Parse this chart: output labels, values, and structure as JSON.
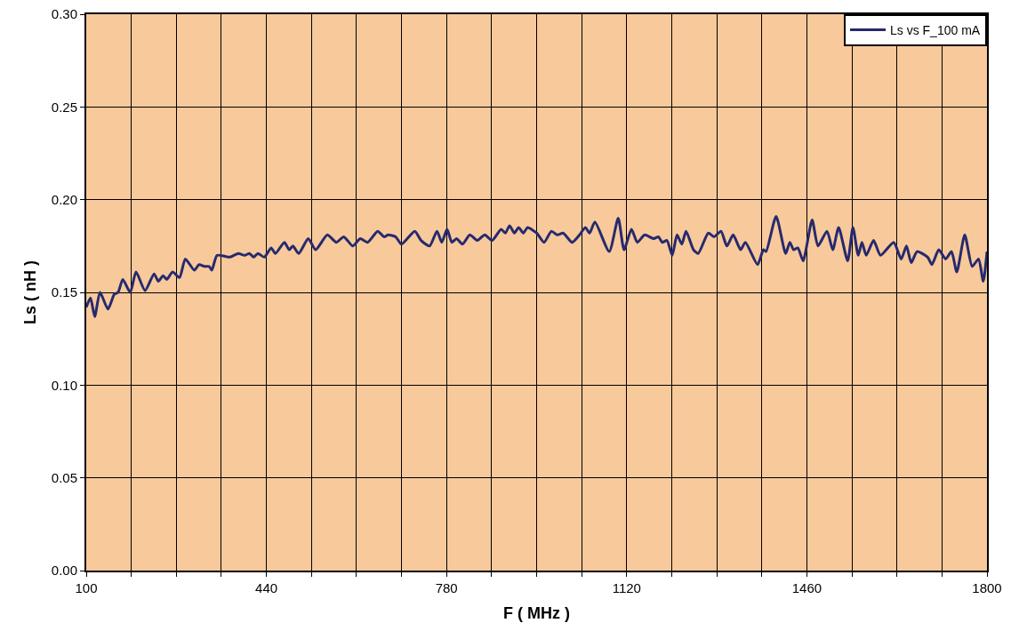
{
  "chart_data": {
    "type": "line",
    "xlabel": "F ( MHz )",
    "ylabel": "Ls ( nH )",
    "xlim": [
      100,
      1800
    ],
    "xticks": [
      100,
      {
        "value": 185,
        "label": null
      },
      {
        "value": 270,
        "label": null
      },
      {
        "value": 355,
        "label": null
      },
      440,
      {
        "value": 525,
        "label": null
      },
      {
        "value": 610,
        "label": null
      },
      {
        "value": 695,
        "label": null
      },
      780,
      {
        "value": 865,
        "label": null
      },
      {
        "value": 950,
        "label": null
      },
      {
        "value": 1035,
        "label": null
      },
      1120,
      {
        "value": 1205,
        "label": null
      },
      {
        "value": 1290,
        "label": null
      },
      {
        "value": 1375,
        "label": null
      },
      1460,
      {
        "value": 1545,
        "label": null
      },
      {
        "value": 1630,
        "label": null
      },
      {
        "value": 1715,
        "label": null
      },
      1800
    ],
    "ylim": [
      0,
      0.3
    ],
    "yticks": [
      {
        "value": 0,
        "label": "0.00"
      },
      {
        "value": 0.05,
        "label": "0.05"
      },
      {
        "value": 0.1,
        "label": "0.10"
      },
      {
        "value": 0.15,
        "label": "0.15"
      },
      {
        "value": 0.2,
        "label": "0.20"
      },
      {
        "value": 0.25,
        "label": "0.25"
      },
      {
        "value": 0.3,
        "label": "0.30"
      }
    ],
    "grid": true,
    "legend": "top right",
    "marker": "none",
    "line_style": "solid",
    "series": [
      {
        "name": "Ls vs F_100 mA",
        "color": "#262a6e",
        "x": [
          100,
          108,
          116,
          126,
          141,
          153,
          160,
          169,
          183,
          194,
          211,
          228,
          236,
          245,
          252,
          263,
          276,
          287,
          304,
          313,
          323,
          332,
          337,
          347,
          371,
          387,
          399,
          408,
          416,
          424,
          436,
          449,
          457,
          474,
          483,
          490,
          501,
          519,
          533,
          555,
          572,
          586,
          603,
          617,
          631,
          650,
          662,
          670,
          684,
          695,
          720,
          732,
          748,
          762,
          771,
          781,
          790,
          799,
          810,
          824,
          838,
          852,
          866,
          883,
          891,
          899,
          908,
          916,
          925,
          933,
          950,
          964,
          978,
          989,
          1000,
          1017,
          1031,
          1042,
          1050,
          1060,
          1087,
          1104,
          1115,
          1129,
          1140,
          1154,
          1171,
          1180,
          1187,
          1196,
          1206,
          1215,
          1224,
          1232,
          1246,
          1255,
          1274,
          1285,
          1298,
          1309,
          1321,
          1335,
          1344,
          1367,
          1378,
          1383,
          1402,
          1420,
          1428,
          1435,
          1443,
          1453,
          1470,
          1481,
          1498,
          1509,
          1520,
          1537,
          1547,
          1557,
          1564,
          1572,
          1586,
          1599,
          1624,
          1638,
          1648,
          1657,
          1668,
          1688,
          1696,
          1709,
          1722,
          1733,
          1743,
          1758,
          1772,
          1784,
          1793,
          1800
        ],
        "values": [
          0.142,
          0.147,
          0.137,
          0.15,
          0.141,
          0.149,
          0.15,
          0.157,
          0.15,
          0.161,
          0.151,
          0.16,
          0.156,
          0.159,
          0.157,
          0.161,
          0.158,
          0.168,
          0.162,
          0.165,
          0.164,
          0.164,
          0.162,
          0.17,
          0.169,
          0.171,
          0.17,
          0.171,
          0.169,
          0.171,
          0.169,
          0.174,
          0.171,
          0.177,
          0.173,
          0.175,
          0.171,
          0.179,
          0.173,
          0.181,
          0.177,
          0.18,
          0.175,
          0.179,
          0.177,
          0.183,
          0.18,
          0.181,
          0.18,
          0.176,
          0.183,
          0.178,
          0.175,
          0.183,
          0.177,
          0.184,
          0.177,
          0.179,
          0.176,
          0.181,
          0.178,
          0.181,
          0.178,
          0.184,
          0.182,
          0.186,
          0.182,
          0.185,
          0.182,
          0.185,
          0.182,
          0.177,
          0.183,
          0.181,
          0.182,
          0.177,
          0.181,
          0.185,
          0.182,
          0.188,
          0.172,
          0.19,
          0.173,
          0.184,
          0.177,
          0.181,
          0.179,
          0.18,
          0.177,
          0.178,
          0.17,
          0.181,
          0.176,
          0.183,
          0.173,
          0.171,
          0.182,
          0.18,
          0.183,
          0.175,
          0.181,
          0.173,
          0.177,
          0.165,
          0.173,
          0.172,
          0.191,
          0.171,
          0.177,
          0.173,
          0.174,
          0.167,
          0.189,
          0.175,
          0.183,
          0.173,
          0.185,
          0.167,
          0.185,
          0.17,
          0.177,
          0.17,
          0.178,
          0.17,
          0.177,
          0.168,
          0.175,
          0.166,
          0.172,
          0.169,
          0.165,
          0.173,
          0.168,
          0.172,
          0.161,
          0.181,
          0.164,
          0.168,
          0.156,
          0.172
        ]
      }
    ]
  }
}
